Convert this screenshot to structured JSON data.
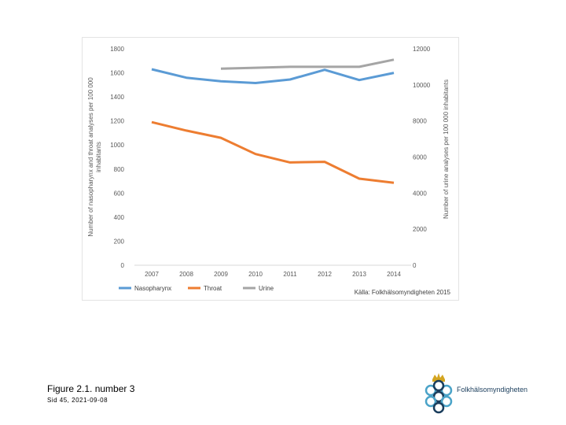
{
  "chart_data": {
    "type": "line",
    "categories": [
      "2007",
      "2008",
      "2009",
      "2010",
      "2011",
      "2012",
      "2013",
      "2014"
    ],
    "series": [
      {
        "name": "Nasopharynx",
        "axis": "left",
        "color": "#5b9bd5",
        "values": [
          1630,
          1560,
          1530,
          1515,
          1545,
          1625,
          1540,
          1600
        ]
      },
      {
        "name": "Throat",
        "axis": "left",
        "color": "#ed7d31",
        "values": [
          1190,
          1120,
          1060,
          925,
          855,
          860,
          720,
          685
        ]
      },
      {
        "name": "Urine",
        "axis": "right",
        "color": "#a5a5a5",
        "values": [
          null,
          null,
          10900,
          10950,
          11000,
          11000,
          11000,
          11400
        ]
      }
    ],
    "left_axis": {
      "label": "Number of nasopharynx and throat analyses per 100 000 inhabitants",
      "min": 0,
      "max": 1800,
      "ticks": [
        0,
        200,
        400,
        600,
        800,
        1000,
        1200,
        1400,
        1600,
        1800
      ]
    },
    "right_axis": {
      "label": "Number of urine analyses per 100 000 inhabitants",
      "min": 0,
      "max": 12000,
      "ticks": [
        0,
        2000,
        4000,
        6000,
        8000,
        10000,
        12000
      ]
    },
    "source": "Källa: Folkhälsomyndigheten 2015"
  },
  "caption": "Figure 2.1. number 3",
  "sub_caption": "Sid 45, 2021-09-08",
  "logo_text": "Folkhälsomyndigheten",
  "colors": {
    "logo": "#1a3d5c",
    "logo_accent": "#4aa3c8",
    "crown": "#d4a520"
  }
}
